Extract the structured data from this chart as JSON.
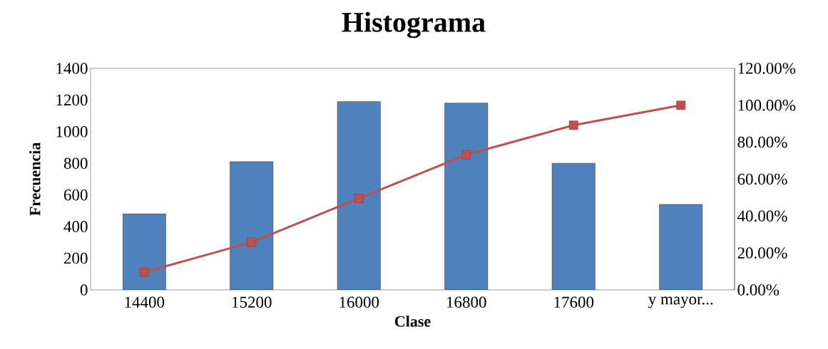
{
  "chart_data": {
    "type": "bar",
    "title": "Histograma",
    "xlabel": "Clase",
    "ylabel": "Frecuencia",
    "categories": [
      "14400",
      "15200",
      "16000",
      "16800",
      "17600",
      "y mayor..."
    ],
    "series": [
      {
        "color": "#4f81bd",
        "values": [
          480,
          810,
          1190,
          1180,
          800,
          540
        ]
      },
      {
        "type": "line",
        "axis": "y2",
        "color": "#c0504d",
        "values": [
          9.6,
          25.8,
          49.6,
          73.2,
          89.2,
          100
        ]
      }
    ],
    "marker": "square",
    "line_style": "solid",
    "ylim": [
      0,
      1400
    ],
    "yticks": [
      0,
      200,
      400,
      600,
      800,
      1000,
      1200,
      1400
    ],
    "y2lim": [
      0,
      120
    ],
    "y2ticks": [
      {
        "value": 0,
        "label": "0.00%"
      },
      {
        "value": 20,
        "label": "20.00%"
      },
      {
        "value": 40,
        "label": "40.00%"
      },
      {
        "value": 60,
        "label": "60.00%"
      },
      {
        "value": 80,
        "label": "80.00%"
      },
      {
        "value": 100,
        "label": "100.00%"
      },
      {
        "value": 120,
        "label": "120.00%"
      }
    ]
  }
}
